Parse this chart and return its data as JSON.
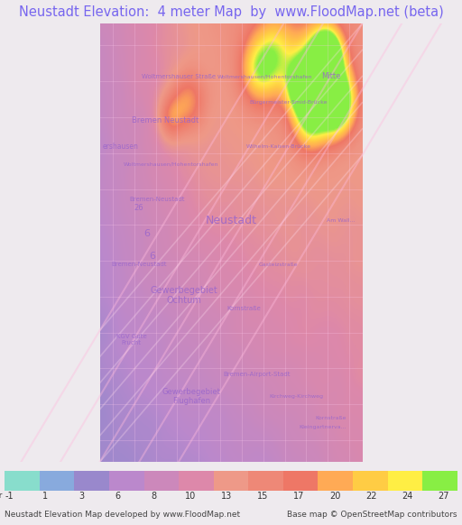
{
  "title": "Neustadt Elevation:  4 meter Map  by  www.FloodMap.net (beta)",
  "title_color": "#7766ee",
  "title_bg": "#eeeaee",
  "colorbar_labels": [
    "-1",
    "1",
    "3",
    "6",
    "8",
    "10",
    "13",
    "15",
    "17",
    "20",
    "22",
    "24",
    "27"
  ],
  "colorbar_values": [
    -1,
    1,
    3,
    6,
    8,
    10,
    13,
    15,
    17,
    20,
    22,
    24,
    27
  ],
  "colorbar_colors": [
    "#88ddcc",
    "#88aadd",
    "#9988cc",
    "#bb88cc",
    "#cc88bb",
    "#dd88aa",
    "#ee9988",
    "#ee8877",
    "#ee7766",
    "#ffaa55",
    "#ffcc44",
    "#ffee44",
    "#88ee44"
  ],
  "footer_left": "Neustadt Elevation Map developed by www.FloodMap.net",
  "footer_right": "Base map © OpenStreetMap contributors",
  "map_bg_color": "#cc88cc",
  "fig_width": 5.12,
  "fig_height": 5.82
}
